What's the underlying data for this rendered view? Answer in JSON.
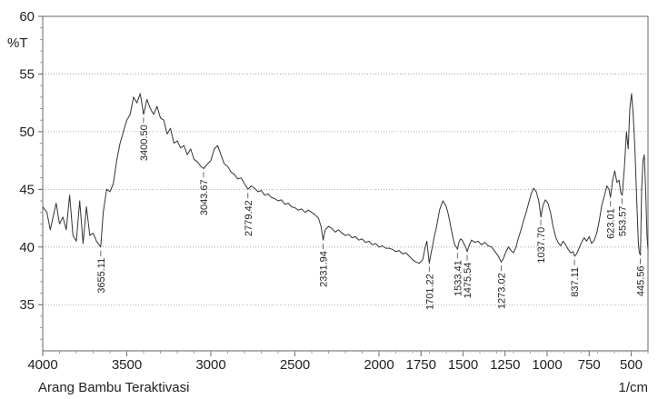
{
  "chart_data": {
    "type": "line",
    "ylabel": "%T",
    "xunit": "1/cm",
    "caption": "Arang Bambu Teraktivasi",
    "xlim": [
      4000,
      400
    ],
    "ylim": [
      31,
      60
    ],
    "xticks": [
      "4000",
      "3500",
      "3000",
      "2500",
      "2000",
      "1750",
      "1500",
      "1250",
      "1000",
      "750",
      "500"
    ],
    "yticks": [
      "35",
      "40",
      "45",
      "50",
      "55",
      "60"
    ],
    "line_color": "#333333",
    "peaks": [
      {
        "x": 3655.11,
        "label": "3655.11"
      },
      {
        "x": 3400.5,
        "label": "3400.50"
      },
      {
        "x": 3043.67,
        "label": "3043.67"
      },
      {
        "x": 2779.42,
        "label": "2779.42"
      },
      {
        "x": 2331.94,
        "label": "2331.94"
      },
      {
        "x": 1701.22,
        "label": "1701.22"
      },
      {
        "x": 1533.41,
        "label": "1533.41"
      },
      {
        "x": 1475.54,
        "label": "1475.54"
      },
      {
        "x": 1273.02,
        "label": "1273.02"
      },
      {
        "x": 1037.7,
        "label": "1037.70"
      },
      {
        "x": 837.11,
        "label": "837.11"
      },
      {
        "x": 623.01,
        "label": "623.01"
      },
      {
        "x": 553.57,
        "label": "553.57"
      },
      {
        "x": 445.56,
        "label": "445.56"
      }
    ],
    "series": [
      {
        "points": [
          [
            4000,
            43.5
          ],
          [
            3975,
            43.0
          ],
          [
            3955,
            41.5
          ],
          [
            3940,
            42.5
          ],
          [
            3920,
            43.8
          ],
          [
            3900,
            42.0
          ],
          [
            3880,
            42.6
          ],
          [
            3860,
            41.5
          ],
          [
            3840,
            44.5
          ],
          [
            3820,
            41.0
          ],
          [
            3800,
            40.5
          ],
          [
            3780,
            44.0
          ],
          [
            3760,
            40.3
          ],
          [
            3740,
            43.5
          ],
          [
            3720,
            41.0
          ],
          [
            3700,
            41.2
          ],
          [
            3680,
            40.5
          ],
          [
            3655,
            40.0
          ],
          [
            3640,
            43.0
          ],
          [
            3620,
            45.0
          ],
          [
            3600,
            44.8
          ],
          [
            3580,
            45.5
          ],
          [
            3560,
            47.5
          ],
          [
            3540,
            49.0
          ],
          [
            3520,
            50.0
          ],
          [
            3500,
            51.0
          ],
          [
            3480,
            51.5
          ],
          [
            3460,
            53.0
          ],
          [
            3440,
            52.5
          ],
          [
            3420,
            53.3
          ],
          [
            3400,
            51.5
          ],
          [
            3380,
            52.8
          ],
          [
            3360,
            52.0
          ],
          [
            3340,
            51.5
          ],
          [
            3320,
            52.2
          ],
          [
            3300,
            51.2
          ],
          [
            3280,
            51.0
          ],
          [
            3260,
            49.8
          ],
          [
            3240,
            50.3
          ],
          [
            3220,
            49.0
          ],
          [
            3200,
            49.2
          ],
          [
            3180,
            48.6
          ],
          [
            3160,
            48.8
          ],
          [
            3140,
            48.0
          ],
          [
            3120,
            48.5
          ],
          [
            3100,
            47.6
          ],
          [
            3080,
            47.4
          ],
          [
            3060,
            47.0
          ],
          [
            3043,
            46.8
          ],
          [
            3020,
            47.2
          ],
          [
            3000,
            47.5
          ],
          [
            2980,
            48.5
          ],
          [
            2960,
            48.8
          ],
          [
            2940,
            48.0
          ],
          [
            2920,
            47.2
          ],
          [
            2900,
            47.0
          ],
          [
            2880,
            46.5
          ],
          [
            2860,
            46.3
          ],
          [
            2840,
            45.9
          ],
          [
            2820,
            46.0
          ],
          [
            2800,
            45.5
          ],
          [
            2779,
            45.0
          ],
          [
            2760,
            45.3
          ],
          [
            2740,
            45.1
          ],
          [
            2720,
            44.8
          ],
          [
            2700,
            44.9
          ],
          [
            2680,
            44.5
          ],
          [
            2660,
            44.6
          ],
          [
            2640,
            44.3
          ],
          [
            2620,
            44.2
          ],
          [
            2600,
            44.0
          ],
          [
            2580,
            44.1
          ],
          [
            2560,
            43.7
          ],
          [
            2540,
            43.8
          ],
          [
            2520,
            43.5
          ],
          [
            2500,
            43.4
          ],
          [
            2480,
            43.2
          ],
          [
            2460,
            43.3
          ],
          [
            2440,
            43.0
          ],
          [
            2420,
            43.2
          ],
          [
            2400,
            43.0
          ],
          [
            2380,
            42.8
          ],
          [
            2360,
            42.5
          ],
          [
            2345,
            41.8
          ],
          [
            2332,
            40.6
          ],
          [
            2320,
            41.5
          ],
          [
            2300,
            41.8
          ],
          [
            2280,
            41.6
          ],
          [
            2260,
            41.3
          ],
          [
            2240,
            41.5
          ],
          [
            2220,
            41.2
          ],
          [
            2200,
            41.0
          ],
          [
            2180,
            41.1
          ],
          [
            2160,
            40.8
          ],
          [
            2140,
            40.9
          ],
          [
            2120,
            40.6
          ],
          [
            2100,
            40.7
          ],
          [
            2080,
            40.4
          ],
          [
            2060,
            40.5
          ],
          [
            2040,
            40.2
          ],
          [
            2020,
            40.3
          ],
          [
            2000,
            40.0
          ],
          [
            1980,
            40.1
          ],
          [
            1960,
            39.9
          ],
          [
            1940,
            39.9
          ],
          [
            1920,
            39.8
          ],
          [
            1900,
            39.6
          ],
          [
            1880,
            39.7
          ],
          [
            1860,
            39.4
          ],
          [
            1840,
            39.5
          ],
          [
            1820,
            39.2
          ],
          [
            1800,
            38.9
          ],
          [
            1780,
            38.7
          ],
          [
            1760,
            38.6
          ],
          [
            1740,
            38.9
          ],
          [
            1725,
            40.0
          ],
          [
            1715,
            40.5
          ],
          [
            1701,
            38.6
          ],
          [
            1690,
            39.5
          ],
          [
            1680,
            40.2
          ],
          [
            1670,
            41.0
          ],
          [
            1660,
            41.6
          ],
          [
            1650,
            42.4
          ],
          [
            1640,
            43.2
          ],
          [
            1630,
            43.6
          ],
          [
            1620,
            44.0
          ],
          [
            1610,
            43.8
          ],
          [
            1600,
            43.5
          ],
          [
            1590,
            43.0
          ],
          [
            1580,
            42.3
          ],
          [
            1570,
            41.5
          ],
          [
            1560,
            40.8
          ],
          [
            1550,
            40.2
          ],
          [
            1540,
            40.0
          ],
          [
            1533,
            39.8
          ],
          [
            1525,
            40.4
          ],
          [
            1515,
            40.7
          ],
          [
            1505,
            40.6
          ],
          [
            1495,
            40.3
          ],
          [
            1485,
            40.0
          ],
          [
            1475,
            39.6
          ],
          [
            1465,
            40.1
          ],
          [
            1450,
            40.6
          ],
          [
            1430,
            40.4
          ],
          [
            1410,
            40.5
          ],
          [
            1390,
            40.2
          ],
          [
            1370,
            40.4
          ],
          [
            1350,
            40.1
          ],
          [
            1330,
            40.0
          ],
          [
            1310,
            39.6
          ],
          [
            1290,
            39.2
          ],
          [
            1273,
            38.7
          ],
          [
            1260,
            39.0
          ],
          [
            1245,
            39.6
          ],
          [
            1230,
            40.0
          ],
          [
            1215,
            39.7
          ],
          [
            1200,
            39.5
          ],
          [
            1185,
            40.0
          ],
          [
            1170,
            40.8
          ],
          [
            1155,
            41.5
          ],
          [
            1140,
            42.3
          ],
          [
            1125,
            43.0
          ],
          [
            1110,
            43.8
          ],
          [
            1095,
            44.6
          ],
          [
            1080,
            45.1
          ],
          [
            1065,
            44.8
          ],
          [
            1050,
            44.0
          ],
          [
            1037,
            42.6
          ],
          [
            1025,
            43.6
          ],
          [
            1010,
            44.1
          ],
          [
            995,
            43.8
          ],
          [
            980,
            43.0
          ],
          [
            965,
            41.8
          ],
          [
            950,
            40.9
          ],
          [
            935,
            40.4
          ],
          [
            920,
            40.1
          ],
          [
            905,
            40.5
          ],
          [
            890,
            40.2
          ],
          [
            875,
            39.8
          ],
          [
            860,
            39.5
          ],
          [
            845,
            39.6
          ],
          [
            837,
            39.2
          ],
          [
            825,
            39.4
          ],
          [
            810,
            39.9
          ],
          [
            795,
            40.4
          ],
          [
            780,
            40.8
          ],
          [
            765,
            40.5
          ],
          [
            750,
            40.9
          ],
          [
            735,
            40.3
          ],
          [
            720,
            40.6
          ],
          [
            705,
            41.2
          ],
          [
            690,
            42.3
          ],
          [
            675,
            43.6
          ],
          [
            660,
            44.4
          ],
          [
            645,
            45.3
          ],
          [
            632,
            45.0
          ],
          [
            623,
            44.3
          ],
          [
            610,
            45.8
          ],
          [
            598,
            46.6
          ],
          [
            585,
            45.6
          ],
          [
            572,
            45.8
          ],
          [
            562,
            44.7
          ],
          [
            553,
            44.5
          ],
          [
            540,
            47.0
          ],
          [
            528,
            50.0
          ],
          [
            518,
            48.5
          ],
          [
            508,
            52.0
          ],
          [
            498,
            53.3
          ],
          [
            488,
            51.5
          ],
          [
            478,
            48.5
          ],
          [
            468,
            44.5
          ],
          [
            458,
            40.5
          ],
          [
            452,
            39.5
          ],
          [
            445,
            39.3
          ],
          [
            438,
            45.0
          ],
          [
            430,
            47.5
          ],
          [
            422,
            48.0
          ],
          [
            414,
            45.0
          ],
          [
            406,
            41.0
          ],
          [
            400,
            39.8
          ]
        ]
      }
    ]
  }
}
